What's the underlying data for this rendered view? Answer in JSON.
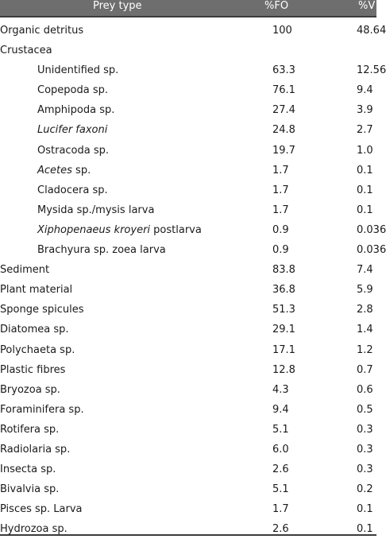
{
  "table": {
    "headers": {
      "prey": "Prey type",
      "fo": "%FO",
      "v": "%V"
    },
    "rows": [
      {
        "name": "Organic detritus",
        "fo": "100",
        "v": "48.64"
      },
      {
        "name": "Crustacea",
        "fo": "",
        "v": ""
      },
      {
        "name": "Unidentified sp.",
        "fo": "63.3",
        "v": "12.56"
      },
      {
        "name": "Copepoda sp.",
        "fo": "76.1",
        "v": "9.4"
      },
      {
        "name": "Amphipoda sp.",
        "fo": "27.4",
        "v": "3.9"
      },
      {
        "name": "Lucifer faxoni",
        "fo": "24.8",
        "v": "2.7"
      },
      {
        "name": "Ostracoda sp.",
        "fo": "19.7",
        "v": "1.0"
      },
      {
        "name_italic": "Acetes",
        "name_rest": " sp.",
        "fo": "1.7",
        "v": "0.1"
      },
      {
        "name": "Cladocera sp.",
        "fo": "1.7",
        "v": "0.1"
      },
      {
        "name": "Mysida sp./mysis larva",
        "fo": "1.7",
        "v": "0.1"
      },
      {
        "name_italic": "Xiphopenaeus kroyeri",
        "name_rest": " postlarva",
        "fo": "0.9",
        "v": "0.036"
      },
      {
        "name": "Brachyura sp. zoea larva",
        "fo": "0.9",
        "v": "0.036"
      },
      {
        "name": "Sediment",
        "fo": "83.8",
        "v": "7.4"
      },
      {
        "name": "Plant material",
        "fo": "36.8",
        "v": "5.9"
      },
      {
        "name": "Sponge spicules",
        "fo": "51.3",
        "v": "2.8"
      },
      {
        "name": "Diatomea sp.",
        "fo": "29.1",
        "v": "1.4"
      },
      {
        "name": "Polychaeta sp.",
        "fo": "17.1",
        "v": "1.2"
      },
      {
        "name": "Plastic fibres",
        "fo": "12.8",
        "v": "0.7"
      },
      {
        "name": "Bryozoa sp.",
        "fo": "4.3",
        "v": "0.6"
      },
      {
        "name": "Foraminifera sp.",
        "fo": "9.4",
        "v": "0.5"
      },
      {
        "name": "Rotifera sp.",
        "fo": "5.1",
        "v": "0.3"
      },
      {
        "name": "Radiolaria sp.",
        "fo": "6.0",
        "v": "0.3"
      },
      {
        "name": "Insecta sp.",
        "fo": "2.6",
        "v": "0.3"
      },
      {
        "name": "Bivalvia sp.",
        "fo": "5.1",
        "v": "0.2"
      },
      {
        "name": "Pisces sp. Larva",
        "fo": "1.7",
        "v": "0.1"
      },
      {
        "name": "Hydrozoa sp.",
        "fo": "2.6",
        "v": "0.1"
      }
    ]
  }
}
